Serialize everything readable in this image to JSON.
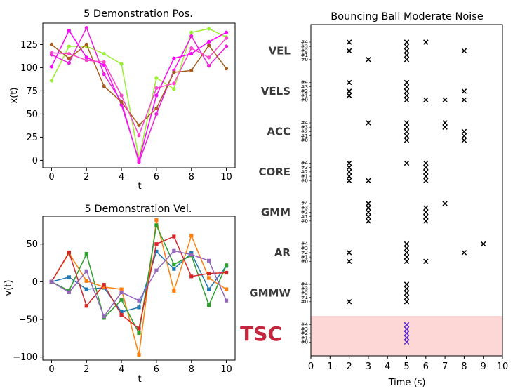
{
  "colors": {
    "demo_series": [
      "#99f033",
      "#ff00ff",
      "#ee1ee0",
      "#a65c1f",
      "#ff44cc"
    ],
    "vel_series": [
      "#1f77b4",
      "#ff7f0e",
      "#2ca02c",
      "#d62728",
      "#9467bd"
    ],
    "tsc_highlight": "#fdd6d6",
    "tsc_label": "#c2273d",
    "tsc_marks": "#5522cc"
  },
  "chart_data": [
    {
      "type": "line",
      "title": "5 Demonstration Pos.",
      "xlabel": "t",
      "ylabel": "x(t)",
      "xlim": [
        -0.5,
        10.5
      ],
      "ylim": [
        -8,
        148
      ],
      "xticks": [
        0,
        2,
        4,
        6,
        8,
        10
      ],
      "yticks": [
        0,
        25,
        50,
        75,
        100,
        125
      ],
      "x": [
        0,
        1,
        2,
        3,
        4,
        5,
        6,
        7,
        8,
        9,
        10
      ],
      "series": [
        {
          "values": [
            86,
            123,
            123,
            115,
            104,
            2,
            89,
            77,
            138,
            142,
            133
          ]
        },
        {
          "values": [
            101,
            140,
            111,
            103,
            60,
            0,
            70,
            110,
            115,
            128,
            138
          ]
        },
        {
          "values": [
            114,
            105,
            143,
            93,
            63,
            -2,
            50,
            97,
            134,
            102,
            123
          ]
        },
        {
          "values": [
            125,
            110,
            125,
            80,
            63,
            38,
            56,
            95,
            97,
            124,
            99
          ]
        },
        {
          "values": [
            116,
            115,
            108,
            106,
            70,
            27,
            78,
            83,
            121,
            111,
            132
          ]
        }
      ]
    },
    {
      "type": "line",
      "title": "5 Demonstration Vel.",
      "xlabel": "t",
      "ylabel": "v(t)",
      "xlim": [
        -0.5,
        10.5
      ],
      "ylim": [
        -104,
        87
      ],
      "xticks": [
        0,
        2,
        4,
        6,
        8,
        10
      ],
      "yticks": [
        -100,
        -50,
        0,
        50
      ],
      "x": [
        0,
        1,
        2,
        3,
        4,
        5,
        6,
        7,
        8,
        9,
        10
      ],
      "series": [
        {
          "values": [
            0,
            6,
            -10,
            -8,
            -40,
            -34,
            40,
            17,
            38,
            -10,
            21
          ]
        },
        {
          "values": [
            0,
            38,
            1,
            -7,
            -10,
            -97,
            82,
            -12,
            61,
            5,
            -10
          ]
        },
        {
          "values": [
            0,
            -12,
            37,
            -48,
            -24,
            -68,
            75,
            23,
            35,
            -31,
            22
          ]
        },
        {
          "values": [
            0,
            39,
            -32,
            -4,
            -44,
            -62,
            50,
            60,
            7,
            11,
            12
          ]
        },
        {
          "values": [
            0,
            -14,
            14,
            -46,
            -14,
            -25,
            15,
            41,
            36,
            28,
            -25
          ]
        }
      ]
    },
    {
      "type": "scatter",
      "title": "Bouncing Ball Moderate Noise",
      "xlabel": "Time (s)",
      "xlim": [
        0,
        10
      ],
      "xticks": [
        0,
        1,
        2,
        3,
        4,
        5,
        6,
        7,
        8,
        9,
        10
      ],
      "demo_labels": [
        "#4",
        "#3",
        "#2",
        "#1",
        "#0"
      ],
      "marker": "x",
      "methods": [
        {
          "label": "VEL",
          "points": [
            [
              2,
              4
            ],
            [
              2,
              2
            ],
            [
              3,
              0
            ],
            [
              5,
              3
            ],
            [
              5,
              2
            ],
            [
              5,
              1
            ],
            [
              5,
              0
            ],
            [
              5,
              4
            ],
            [
              6,
              4
            ],
            [
              8,
              2
            ]
          ]
        },
        {
          "label": "VELS",
          "points": [
            [
              2,
              4
            ],
            [
              2,
              2
            ],
            [
              2,
              1
            ],
            [
              5,
              4
            ],
            [
              5,
              3
            ],
            [
              5,
              2
            ],
            [
              5,
              1
            ],
            [
              5,
              0
            ],
            [
              6,
              0
            ],
            [
              7,
              0
            ],
            [
              8,
              2
            ],
            [
              8,
              0
            ]
          ]
        },
        {
          "label": "ACC",
          "points": [
            [
              3,
              4
            ],
            [
              5,
              4
            ],
            [
              5,
              3
            ],
            [
              5,
              2
            ],
            [
              5,
              1
            ],
            [
              5,
              0
            ],
            [
              7,
              4
            ],
            [
              7,
              3
            ],
            [
              8,
              2
            ],
            [
              8,
              1
            ],
            [
              8,
              0
            ]
          ]
        },
        {
          "label": "CORE",
          "points": [
            [
              2,
              4
            ],
            [
              2,
              3
            ],
            [
              2,
              2
            ],
            [
              2,
              1
            ],
            [
              2,
              0
            ],
            [
              3,
              0
            ],
            [
              5,
              4
            ],
            [
              6,
              4
            ],
            [
              6,
              3
            ],
            [
              6,
              2
            ],
            [
              6,
              1
            ],
            [
              6,
              0
            ]
          ]
        },
        {
          "label": "GMM",
          "points": [
            [
              3,
              4
            ],
            [
              3,
              3
            ],
            [
              3,
              2
            ],
            [
              3,
              1
            ],
            [
              3,
              0
            ],
            [
              6,
              3
            ],
            [
              6,
              2
            ],
            [
              6,
              1
            ],
            [
              6,
              0
            ],
            [
              7,
              4
            ]
          ]
        },
        {
          "label": "AR",
          "points": [
            [
              2,
              2
            ],
            [
              2,
              0
            ],
            [
              5,
              4
            ],
            [
              5,
              3
            ],
            [
              5,
              2
            ],
            [
              5,
              1
            ],
            [
              5,
              0
            ],
            [
              6,
              0
            ],
            [
              8,
              2
            ],
            [
              9,
              4
            ]
          ]
        },
        {
          "label": "GMMW",
          "points": [
            [
              2,
              0
            ],
            [
              5,
              4
            ],
            [
              5,
              3
            ],
            [
              5,
              2
            ],
            [
              5,
              1
            ],
            [
              5,
              0
            ]
          ]
        },
        {
          "label": "TSC",
          "points": [
            [
              5,
              4
            ],
            [
              5,
              3
            ],
            [
              5,
              2
            ],
            [
              5,
              1
            ],
            [
              5,
              0
            ]
          ]
        }
      ]
    }
  ]
}
